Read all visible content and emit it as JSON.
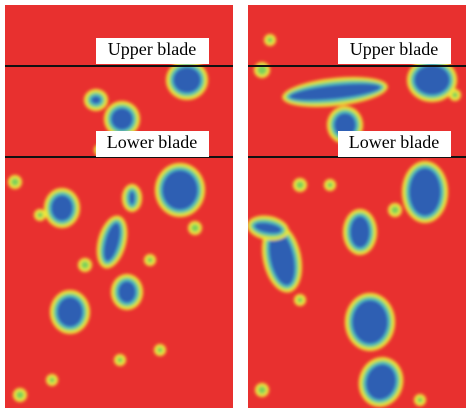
{
  "panels": [
    {
      "upper_label": "Upper blade",
      "lower_label": "Lower blade"
    },
    {
      "upper_label": "Upper blade",
      "lower_label": "Lower blade"
    }
  ]
}
